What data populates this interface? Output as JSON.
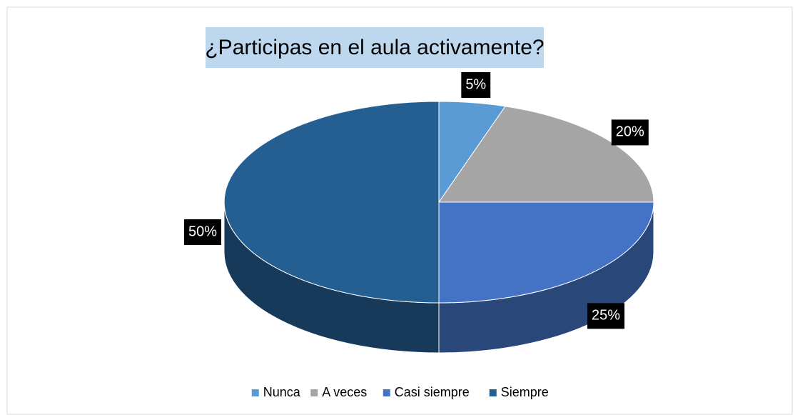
{
  "chart_data": {
    "type": "pie3d",
    "title": "¿Participas en el aula activamente?",
    "categories": [
      "Nunca",
      "A veces",
      "Casi siempre",
      "Siempre"
    ],
    "values": [
      5,
      20,
      25,
      50
    ],
    "value_labels": [
      "5%",
      "20%",
      "25%",
      "50%"
    ],
    "colors": [
      "#5b9bd5",
      "#a5a5a5",
      "#4472c4",
      "#255e91"
    ],
    "legend": "bottom"
  }
}
